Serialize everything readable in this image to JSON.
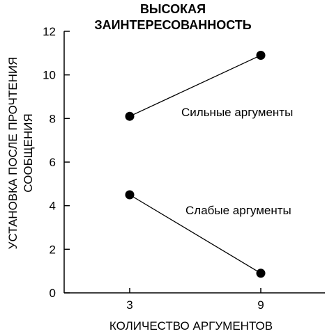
{
  "chart_data": {
    "type": "line",
    "title": [
      "ВЫСОКАЯ",
      "ЗАИНТЕРЕСОВАННОСТЬ"
    ],
    "xlabel": "КОЛИЧЕСТВО АРГУМЕНТОВ",
    "ylabel": [
      "УСТАНОВКА ПОСЛЕ ПРОЧТЕНИЯ",
      "СООБЩЕНИЯ"
    ],
    "x": [
      3,
      9
    ],
    "xticks": [
      "3",
      "9"
    ],
    "yticks": [
      "0",
      "2",
      "4",
      "6",
      "8",
      "10",
      "12"
    ],
    "ylim": [
      0,
      12
    ],
    "grid": false,
    "series": [
      {
        "name": "Сильные аргументы",
        "values": [
          8.1,
          10.9
        ],
        "color": "#000000"
      },
      {
        "name": "Слабые аргументы",
        "values": [
          4.5,
          0.9
        ],
        "color": "#000000"
      }
    ]
  }
}
